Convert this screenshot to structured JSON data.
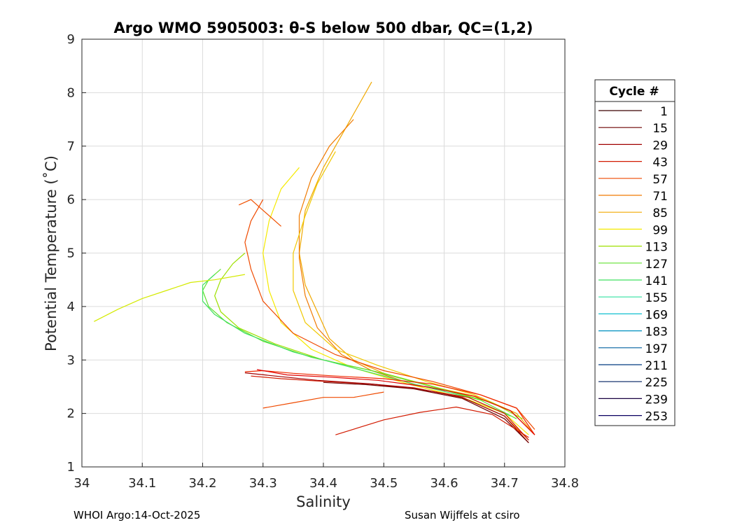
{
  "chart_data": {
    "type": "line",
    "title": "Argo WMO 5905003: θ-S below 500 dbar,  QC=(1,2)",
    "xlabel": "Salinity",
    "ylabel": "Potential Temperature (˚C)",
    "xlim": [
      34,
      34.8
    ],
    "ylim": [
      1,
      9
    ],
    "xticks": [
      "34",
      "34.1",
      "34.2",
      "34.3",
      "34.4",
      "34.5",
      "34.6",
      "34.7",
      "34.8"
    ],
    "yticks": [
      "1",
      "2",
      "3",
      "4",
      "5",
      "6",
      "7",
      "8",
      "9"
    ],
    "grid": true,
    "legend": {
      "title": "Cycle #",
      "placement": "right",
      "entries": [
        {
          "label": "1",
          "color": "#3a0000"
        },
        {
          "label": "15",
          "color": "#6e0000"
        },
        {
          "label": "29",
          "color": "#a00000"
        },
        {
          "label": "43",
          "color": "#d21a00"
        },
        {
          "label": "57",
          "color": "#ef4a00"
        },
        {
          "label": "71",
          "color": "#f07a00"
        },
        {
          "label": "85",
          "color": "#f0a800"
        },
        {
          "label": "99",
          "color": "#f5ea00"
        },
        {
          "label": "113",
          "color": "#9ee000"
        },
        {
          "label": "127",
          "color": "#60e030"
        },
        {
          "label": "141",
          "color": "#40e060"
        },
        {
          "label": "155",
          "color": "#30e0a0"
        },
        {
          "label": "169",
          "color": "#10c0d0"
        },
        {
          "label": "183",
          "color": "#0090c0"
        },
        {
          "label": "197",
          "color": "#0060a0"
        },
        {
          "label": "211",
          "color": "#003a80"
        },
        {
          "label": "225",
          "color": "#002060"
        },
        {
          "label": "239",
          "color": "#180040"
        },
        {
          "label": "253",
          "color": "#0a0060"
        }
      ]
    },
    "series": [
      {
        "color": "#f0a800",
        "x": [
          34.75,
          34.72,
          34.66,
          34.58,
          34.5,
          34.45,
          34.41,
          34.39,
          34.37,
          34.36,
          34.37,
          34.4,
          34.44,
          34.48
        ],
        "y": [
          1.6,
          2.0,
          2.3,
          2.5,
          2.75,
          3.0,
          3.4,
          3.9,
          4.4,
          5.0,
          5.8,
          6.6,
          7.4,
          8.2
        ]
      },
      {
        "color": "#f07a00",
        "x": [
          34.74,
          34.7,
          34.64,
          34.56,
          34.48,
          34.43,
          34.39,
          34.37,
          34.36,
          34.36,
          34.38,
          34.41,
          34.45
        ],
        "y": [
          1.5,
          1.95,
          2.25,
          2.5,
          2.8,
          3.1,
          3.6,
          4.2,
          4.9,
          5.7,
          6.4,
          7.0,
          7.5
        ]
      },
      {
        "color": "#f5ea00",
        "x": [
          34.74,
          34.7,
          34.63,
          34.54,
          34.45,
          34.38,
          34.33,
          34.31,
          34.3,
          34.31,
          34.33,
          34.36
        ],
        "y": [
          1.6,
          2.0,
          2.3,
          2.55,
          2.85,
          3.2,
          3.7,
          4.3,
          5.0,
          5.6,
          6.2,
          6.6
        ]
      },
      {
        "color": "#f0c800",
        "x": [
          34.75,
          34.71,
          34.65,
          34.57,
          34.49,
          34.42,
          34.37,
          34.35,
          34.35,
          34.37,
          34.39,
          34.42
        ],
        "y": [
          1.6,
          2.05,
          2.35,
          2.6,
          2.9,
          3.2,
          3.7,
          4.3,
          5.0,
          5.7,
          6.3,
          6.9
        ]
      },
      {
        "color": "#9ee000",
        "x": [
          34.73,
          34.68,
          34.6,
          34.5,
          34.4,
          34.32,
          34.26,
          34.23,
          34.22,
          34.23,
          34.25,
          34.27
        ],
        "y": [
          1.9,
          2.2,
          2.45,
          2.75,
          3.0,
          3.3,
          3.6,
          3.9,
          4.2,
          4.5,
          4.8,
          5.0
        ]
      },
      {
        "color": "#60e030",
        "x": [
          34.72,
          34.66,
          34.58,
          34.48,
          34.38,
          34.3,
          34.24,
          34.21,
          34.2,
          34.21,
          34.23
        ],
        "y": [
          1.9,
          2.25,
          2.5,
          2.8,
          3.05,
          3.35,
          3.7,
          4.0,
          4.3,
          4.5,
          4.7
        ]
      },
      {
        "color": "#40e060",
        "x": [
          34.71,
          34.64,
          34.55,
          34.45,
          34.35,
          34.27,
          34.22,
          34.2,
          34.2,
          34.22
        ],
        "y": [
          1.95,
          2.3,
          2.55,
          2.85,
          3.15,
          3.5,
          3.85,
          4.1,
          4.4,
          4.6
        ]
      },
      {
        "color": "#d4ea00",
        "x": [
          34.27,
          34.22,
          34.18,
          34.14,
          34.1,
          34.06,
          34.02
        ],
        "y": [
          4.6,
          4.5,
          4.45,
          4.3,
          4.15,
          3.95,
          3.72
        ]
      },
      {
        "color": "#ef4a00",
        "x": [
          34.75,
          34.72,
          34.66,
          34.58,
          34.5,
          34.42,
          34.35,
          34.3,
          34.28,
          34.27,
          34.28,
          34.3
        ],
        "y": [
          1.7,
          2.1,
          2.35,
          2.6,
          2.8,
          3.1,
          3.5,
          4.1,
          4.7,
          5.2,
          5.6,
          6.0
        ]
      },
      {
        "color": "#ef2a00",
        "x": [
          34.75,
          34.72,
          34.66,
          34.58,
          34.5,
          34.42,
          34.35,
          34.3,
          34.27
        ],
        "y": [
          1.6,
          2.1,
          2.35,
          2.55,
          2.65,
          2.7,
          2.75,
          2.8,
          2.78
        ]
      },
      {
        "color": "#d21a00",
        "x": [
          34.74,
          34.7,
          34.64,
          34.56,
          34.48,
          34.4,
          34.33,
          34.28
        ],
        "y": [
          1.5,
          2.0,
          2.3,
          2.45,
          2.55,
          2.6,
          2.65,
          2.7
        ]
      },
      {
        "color": "#e00000",
        "x": [
          34.75,
          34.71,
          34.65,
          34.57,
          34.49,
          34.41,
          34.34,
          34.29
        ],
        "y": [
          1.6,
          2.05,
          2.32,
          2.5,
          2.62,
          2.68,
          2.72,
          2.82
        ]
      },
      {
        "color": "#a00000",
        "x": [
          34.74,
          34.7,
          34.63,
          34.55,
          34.47,
          34.39,
          34.32,
          34.27
        ],
        "y": [
          1.45,
          1.95,
          2.3,
          2.48,
          2.56,
          2.62,
          2.7,
          2.76
        ]
      },
      {
        "color": "#6e0000",
        "x": [
          34.74,
          34.7,
          34.63,
          34.55,
          34.47,
          34.4
        ],
        "y": [
          1.45,
          1.9,
          2.28,
          2.46,
          2.54,
          2.58
        ]
      },
      {
        "color": "#d21a00",
        "x": [
          34.74,
          34.68,
          34.62,
          34.56,
          34.5,
          34.42
        ],
        "y": [
          1.55,
          1.98,
          2.12,
          2.02,
          1.88,
          1.6
        ]
      },
      {
        "color": "#ef4a00",
        "x": [
          34.5,
          34.45,
          34.4,
          34.35,
          34.3
        ],
        "y": [
          2.4,
          2.3,
          2.3,
          2.2,
          2.1
        ]
      },
      {
        "color": "#f05000",
        "x": [
          34.33,
          34.3,
          34.28,
          34.26
        ],
        "y": [
          5.5,
          5.8,
          6.0,
          5.9
        ]
      }
    ]
  },
  "footer": {
    "left": "WHOI Argo:14-Oct-2025",
    "right": "Susan Wijffels at csiro"
  }
}
